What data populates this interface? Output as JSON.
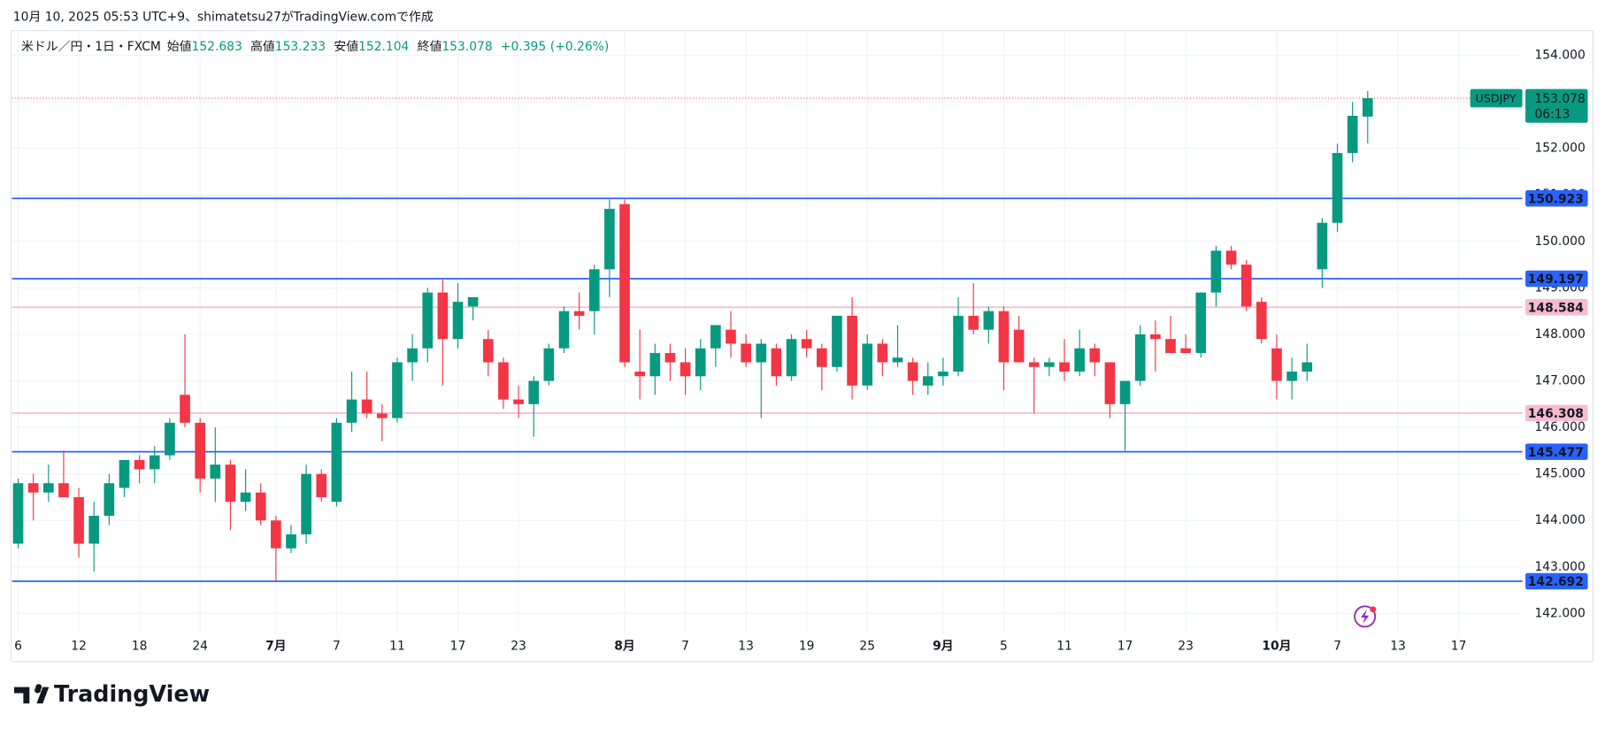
{
  "header": {
    "text": "10月 10, 2025 05:53 UTC+9、shimatetsu27がTradingView.comで作成"
  },
  "chart_data": {
    "type": "candlestick",
    "symbol": "米ドル／円・1日・FXCM",
    "legend_labels": {
      "open": "始値",
      "high": "高値",
      "low": "安値",
      "close": "終値"
    },
    "change": "+0.395",
    "change_pct": "(+0.26%)",
    "open": [
      143.5,
      144.8,
      144.6,
      144.8,
      144.5,
      143.5,
      144.1,
      144.7,
      145.3,
      145.1,
      145.4,
      146.7,
      146.1,
      144.9,
      145.2,
      144.4,
      144.6,
      144.0,
      143.4,
      143.7,
      145.0,
      144.4,
      146.1,
      146.6,
      146.3,
      146.2,
      147.4,
      147.7,
      148.9,
      147.9,
      148.6,
      147.9,
      147.4,
      146.6,
      146.5,
      147.0,
      147.7,
      148.5,
      148.5,
      149.4,
      150.8,
      147.2,
      147.1,
      147.6,
      147.4,
      147.1,
      147.7,
      148.1,
      147.8,
      147.4,
      147.7,
      147.1,
      147.9,
      147.7,
      147.3,
      148.4,
      146.9,
      147.8,
      147.4,
      147.4,
      146.9,
      147.1,
      147.2,
      148.4,
      148.1,
      148.5,
      148.1,
      147.4,
      147.3,
      147.4,
      147.2,
      147.7,
      147.4,
      146.5,
      147.0,
      148.0,
      147.9,
      147.7,
      147.6,
      148.9,
      149.8,
      149.5,
      148.7,
      147.7,
      147.0,
      147.2,
      149.4,
      150.4,
      151.9,
      152.683
    ],
    "high": [
      144.9,
      145.0,
      145.2,
      145.5,
      144.7,
      144.4,
      145.0,
      145.3,
      145.4,
      145.6,
      146.2,
      148.0,
      146.2,
      146.0,
      145.3,
      145.1,
      144.8,
      144.1,
      143.9,
      145.2,
      145.1,
      146.2,
      147.2,
      147.2,
      146.5,
      147.5,
      148.0,
      149.0,
      149.2,
      149.1,
      148.8,
      148.1,
      147.5,
      146.9,
      147.1,
      147.8,
      148.6,
      148.9,
      149.5,
      150.9,
      150.9,
      148.1,
      147.8,
      147.8,
      147.7,
      147.9,
      148.2,
      148.5,
      148.0,
      147.9,
      147.8,
      148.0,
      148.1,
      147.8,
      148.4,
      148.8,
      148.0,
      147.9,
      148.2,
      147.5,
      147.4,
      147.5,
      148.8,
      149.1,
      148.6,
      148.6,
      148.4,
      147.5,
      147.5,
      147.9,
      148.1,
      147.8,
      147.4,
      147.0,
      148.2,
      148.3,
      148.4,
      148.0,
      148.9,
      149.9,
      149.9,
      149.6,
      148.8,
      148.0,
      147.5,
      147.8,
      150.5,
      152.1,
      153.0,
      153.233
    ],
    "low": [
      143.4,
      144.0,
      144.4,
      144.5,
      143.2,
      142.9,
      143.9,
      144.5,
      144.8,
      144.8,
      145.3,
      146.0,
      144.6,
      144.4,
      143.8,
      144.2,
      143.9,
      142.7,
      143.3,
      143.5,
      144.4,
      144.3,
      145.9,
      146.2,
      145.7,
      146.1,
      147.0,
      147.4,
      146.9,
      147.7,
      148.3,
      147.1,
      146.4,
      146.2,
      145.8,
      146.9,
      147.6,
      148.1,
      148.0,
      148.8,
      147.3,
      146.6,
      146.7,
      147.0,
      146.7,
      146.8,
      147.3,
      147.5,
      147.3,
      146.2,
      146.9,
      147.0,
      147.5,
      146.8,
      147.2,
      146.6,
      146.8,
      147.1,
      147.3,
      146.7,
      146.7,
      146.9,
      147.1,
      148.0,
      147.8,
      146.8,
      147.4,
      146.3,
      147.1,
      147.0,
      147.1,
      147.1,
      146.2,
      145.5,
      146.9,
      147.2,
      147.6,
      147.6,
      147.5,
      148.6,
      149.4,
      148.5,
      147.8,
      146.6,
      146.6,
      147.0,
      149.0,
      150.2,
      151.7,
      152.104
    ],
    "close": [
      144.8,
      144.6,
      144.8,
      144.5,
      143.5,
      144.1,
      144.8,
      145.3,
      145.1,
      145.4,
      146.1,
      146.1,
      144.9,
      145.2,
      144.4,
      144.6,
      144.0,
      143.4,
      143.7,
      145.0,
      144.5,
      146.1,
      146.6,
      146.3,
      146.2,
      147.4,
      147.7,
      148.9,
      147.9,
      148.7,
      148.8,
      147.4,
      146.6,
      146.5,
      147.0,
      147.7,
      148.5,
      148.4,
      149.4,
      150.7,
      147.4,
      147.1,
      147.6,
      147.4,
      147.1,
      147.7,
      148.2,
      147.8,
      147.4,
      147.8,
      147.1,
      147.9,
      147.7,
      147.3,
      148.4,
      146.9,
      147.8,
      147.4,
      147.5,
      147.0,
      147.1,
      147.2,
      148.4,
      148.1,
      148.5,
      147.4,
      147.4,
      147.3,
      147.4,
      147.2,
      147.7,
      147.4,
      146.5,
      147.0,
      148.0,
      147.9,
      147.6,
      147.6,
      148.9,
      149.8,
      149.5,
      148.6,
      147.9,
      147.0,
      147.2,
      147.4,
      150.4,
      151.9,
      152.7,
      153.078
    ],
    "up_color": "#089981",
    "down_color": "#f23645",
    "xlim": [
      -0.4,
      99.2
    ],
    "xticks": [
      {
        "value": 0,
        "label": "6"
      },
      {
        "value": 4,
        "label": "12"
      },
      {
        "value": 8,
        "label": "18"
      },
      {
        "value": 12,
        "label": "24"
      },
      {
        "value": 17,
        "label": "7月"
      },
      {
        "value": 21,
        "label": "7"
      },
      {
        "value": 25,
        "label": "11"
      },
      {
        "value": 29,
        "label": "17"
      },
      {
        "value": 33,
        "label": "23"
      },
      {
        "value": 40,
        "label": "8月"
      },
      {
        "value": 44,
        "label": "7"
      },
      {
        "value": 48,
        "label": "13"
      },
      {
        "value": 52,
        "label": "19"
      },
      {
        "value": 56,
        "label": "25"
      },
      {
        "value": 61,
        "label": "9月"
      },
      {
        "value": 65,
        "label": "5"
      },
      {
        "value": 69,
        "label": "11"
      },
      {
        "value": 73,
        "label": "17"
      },
      {
        "value": 77,
        "label": "23"
      },
      {
        "value": 83,
        "label": "10月"
      },
      {
        "value": 87,
        "label": "7"
      },
      {
        "value": 91,
        "label": "13"
      },
      {
        "value": 95,
        "label": "17"
      }
    ],
    "ylim": [
      141.56,
      154.53
    ],
    "yticks": [
      {
        "value": 142,
        "label": "142.000"
      },
      {
        "value": 143,
        "label": "143.000"
      },
      {
        "value": 144,
        "label": "144.000"
      },
      {
        "value": 145,
        "label": "145.000"
      },
      {
        "value": 146,
        "label": "146.000"
      },
      {
        "value": 147,
        "label": "147.000"
      },
      {
        "value": 148,
        "label": "148.000"
      },
      {
        "value": 149,
        "label": "149.000"
      },
      {
        "value": 150,
        "label": "150.000"
      },
      {
        "value": 151,
        "label": "151.000"
      },
      {
        "value": 152,
        "label": "152.000"
      },
      {
        "value": 153,
        "label": "153.000"
      },
      {
        "value": 154,
        "label": "154.000"
      }
    ],
    "grid": true,
    "levels": [
      {
        "value": 150.923,
        "color": "#2962ff",
        "text_color": "#ffffff"
      },
      {
        "value": 149.197,
        "color": "#2962ff",
        "text_color": "#ffffff"
      },
      {
        "value": 148.584,
        "color": "#f8bbd0",
        "text_color": "#131722"
      },
      {
        "value": 146.308,
        "color": "#f8bbd0",
        "text_color": "#131722"
      },
      {
        "value": 145.477,
        "color": "#2962ff",
        "text_color": "#ffffff"
      },
      {
        "value": 142.692,
        "color": "#2962ff",
        "text_color": "#ffffff"
      }
    ],
    "last_price": {
      "ticker": "USDJPY",
      "countdown": "06:13"
    }
  },
  "footer": {
    "logo": "TradingView"
  }
}
